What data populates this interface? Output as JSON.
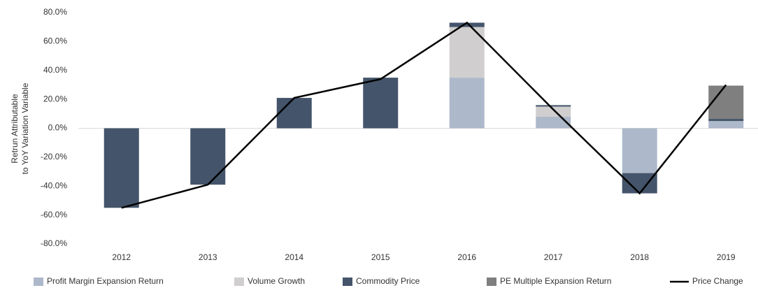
{
  "chart_data": {
    "type": "bar",
    "ylabel": [
      "Retrun Attributable",
      "to YoY Variation Variable"
    ],
    "categories": [
      "2012",
      "2013",
      "2014",
      "2015",
      "2016",
      "2017",
      "2018",
      "2019"
    ],
    "series": [
      {
        "name": "Profit Margin Expansion Return",
        "color": "#adb9ca",
        "values": [
          0,
          0,
          0,
          0,
          35,
          8,
          -31,
          5
        ]
      },
      {
        "name": "Volume Growth",
        "color": "#d0cece",
        "values": [
          0,
          0,
          0,
          0,
          35,
          7,
          0,
          0
        ]
      },
      {
        "name": "Commodity Price",
        "color": "#44546a",
        "values": [
          -55,
          -39,
          21,
          35,
          3,
          1,
          -14,
          1.5
        ]
      },
      {
        "name": "PE Multiple Expansion Return",
        "color": "#7f7f7f",
        "values": [
          0,
          0,
          0,
          0,
          0,
          0,
          0,
          23
        ]
      },
      {
        "name": "Price Change",
        "type": "line",
        "color": "#000000",
        "values": [
          -55,
          -39,
          21,
          34,
          73,
          13,
          -45,
          30
        ]
      }
    ],
    "ylim": [
      -80,
      80
    ],
    "yticks": [
      {
        "value": -80,
        "label": "-80.0%"
      },
      {
        "value": -60,
        "label": "-60.0%"
      },
      {
        "value": -40,
        "label": "-40.0%"
      },
      {
        "value": -20,
        "label": "-20.0%"
      },
      {
        "value": 0,
        "label": "0.0%"
      },
      {
        "value": 20,
        "label": "20.0%"
      },
      {
        "value": 40,
        "label": "40.0%"
      },
      {
        "value": 60,
        "label": "60.0%"
      },
      {
        "value": 80,
        "label": "80.0%"
      }
    ],
    "legend": "bottom"
  }
}
